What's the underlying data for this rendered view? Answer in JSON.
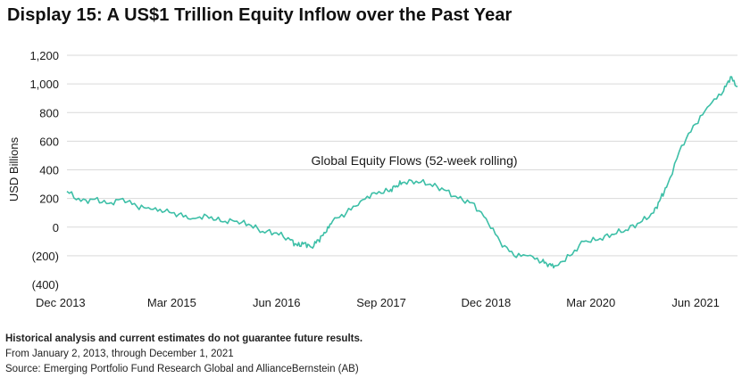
{
  "title": "Display 15: A US$1 Trillion Equity Inflow over the Past Year",
  "notes": {
    "disclaimer": "Historical analysis and current estimates do not guarantee future results.",
    "period": "From January 2, 2013, through December 1, 2021",
    "source": "Source: Emerging Portfolio Fund Research Global and AllianceBernstein (AB)"
  },
  "colors": {
    "line": "#3dbfa7",
    "grid": "#d9d9d9",
    "text": "#1a1a1a"
  },
  "chart_data": {
    "type": "line",
    "title": "Display 15: A US$1 Trillion Equity Inflow over the Past Year",
    "ylabel": "USD Billions",
    "xlabel": "",
    "ylim": [
      -400,
      1200
    ],
    "yticks": [
      -400,
      -200,
      0,
      200,
      400,
      600,
      800,
      1000,
      1200
    ],
    "ytick_labels": [
      "(400)",
      "(200)",
      "0",
      "200",
      "400",
      "600",
      "800",
      "1,000",
      "1,200"
    ],
    "xlim": [
      "2013-12",
      "2021-12"
    ],
    "xticks": [
      "2013-12",
      "2015-03",
      "2016-06",
      "2017-09",
      "2018-12",
      "2020-03",
      "2021-06"
    ],
    "xtick_labels": [
      "Dec 2013",
      "Mar 2015",
      "Jun 2016",
      "Sep 2017",
      "Dec 2018",
      "Mar 2020",
      "Jun 2021"
    ],
    "grid": true,
    "annotations": [
      {
        "text": "Global Equity Flows (52-week rolling)"
      }
    ],
    "series": [
      {
        "name": "Global Equity Flows (52-week rolling)",
        "x": [
          "2013-12",
          "2014-02",
          "2014-04",
          "2014-06",
          "2014-08",
          "2014-10",
          "2014-12",
          "2015-02",
          "2015-04",
          "2015-06",
          "2015-08",
          "2015-10",
          "2015-12",
          "2016-02",
          "2016-04",
          "2016-06",
          "2016-08",
          "2016-09",
          "2016-10",
          "2016-11",
          "2016-12",
          "2017-01",
          "2017-02",
          "2017-04",
          "2017-06",
          "2017-08",
          "2017-10",
          "2017-11",
          "2017-12",
          "2018-02",
          "2018-04",
          "2018-06",
          "2018-08",
          "2018-10",
          "2018-12",
          "2019-02",
          "2019-04",
          "2019-06",
          "2019-08",
          "2019-09",
          "2019-10",
          "2019-12",
          "2020-02",
          "2020-04",
          "2020-06",
          "2020-08",
          "2020-10",
          "2020-12",
          "2021-01",
          "2021-02",
          "2021-04",
          "2021-06",
          "2021-08",
          "2021-10",
          "2021-11",
          "2021-12"
        ],
        "values": [
          250,
          180,
          195,
          165,
          200,
          145,
          125,
          110,
          90,
          60,
          80,
          40,
          40,
          20,
          -30,
          -40,
          -90,
          -130,
          -110,
          -140,
          -90,
          -40,
          40,
          100,
          180,
          240,
          250,
          280,
          310,
          320,
          300,
          260,
          200,
          170,
          60,
          -100,
          -200,
          -200,
          -240,
          -260,
          -270,
          -200,
          -100,
          -90,
          -50,
          -20,
          30,
          100,
          200,
          300,
          570,
          720,
          850,
          950,
          1050,
          980
        ]
      }
    ]
  }
}
